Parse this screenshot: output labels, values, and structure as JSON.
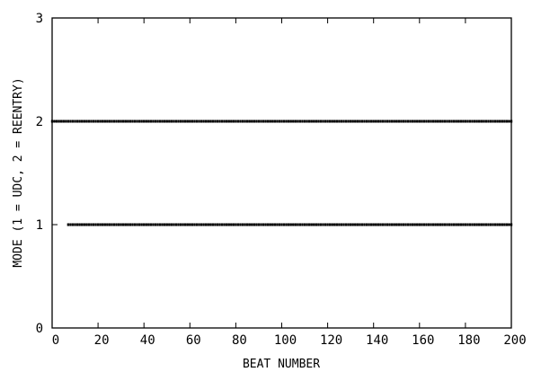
{
  "chart_data": {
    "type": "scatter",
    "xlabel": "BEAT NUMBER",
    "ylabel": "MODE (1 = UDC, 2 = REENTRY)",
    "xlim": [
      0,
      200
    ],
    "ylim": [
      0,
      3
    ],
    "xticks": [
      "0",
      "20",
      "40",
      "60",
      "80",
      "100",
      "120",
      "140",
      "160",
      "180",
      "200"
    ],
    "yticks": [
      "0",
      "1",
      "2",
      "3"
    ],
    "grid": false,
    "series": [
      {
        "points": [
          {
            "x_start": 0,
            "x_end": 200,
            "y": 2
          },
          {
            "x_start": 7,
            "x_end": 200,
            "y": 1
          }
        ]
      }
    ]
  }
}
